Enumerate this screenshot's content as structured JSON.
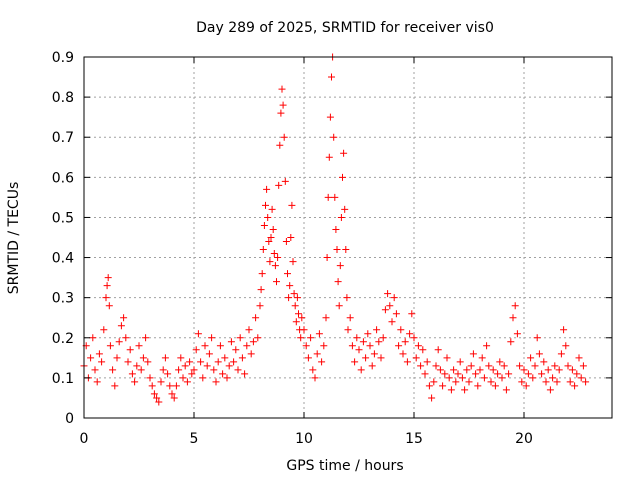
{
  "chart_data": {
    "type": "scatter",
    "title": "Day 289 of 2025, SRMTID for receiver vis0",
    "xlabel": "GPS time / hours",
    "ylabel": "SRMTID / TECUs",
    "xlim": [
      0,
      24
    ],
    "ylim": [
      0,
      0.9
    ],
    "x_ticks": [
      0,
      5,
      10,
      15,
      20
    ],
    "y_ticks": [
      0,
      0.1,
      0.2,
      0.3,
      0.4,
      0.5,
      0.6,
      0.7,
      0.8,
      0.9
    ],
    "x_tick_labels": [
      "0",
      "5",
      "10",
      "15",
      "20"
    ],
    "y_tick_labels": [
      "0",
      "0.1",
      "0.2",
      "0.3",
      "0.4",
      "0.5",
      "0.6",
      "0.7",
      "0.8",
      "0.9"
    ],
    "grid": true,
    "marker": "+",
    "series": [
      {
        "name": "vis0",
        "color": "#ff0000",
        "points": [
          [
            0.0,
            0.13
          ],
          [
            0.1,
            0.18
          ],
          [
            0.2,
            0.1
          ],
          [
            0.3,
            0.15
          ],
          [
            0.4,
            0.2
          ],
          [
            0.5,
            0.12
          ],
          [
            0.6,
            0.09
          ],
          [
            0.7,
            0.16
          ],
          [
            0.8,
            0.14
          ],
          [
            0.9,
            0.22
          ],
          [
            1.0,
            0.3
          ],
          [
            1.05,
            0.33
          ],
          [
            1.1,
            0.35
          ],
          [
            1.15,
            0.28
          ],
          [
            1.2,
            0.18
          ],
          [
            1.3,
            0.12
          ],
          [
            1.4,
            0.08
          ],
          [
            1.5,
            0.15
          ],
          [
            1.6,
            0.19
          ],
          [
            1.7,
            0.23
          ],
          [
            1.8,
            0.25
          ],
          [
            1.9,
            0.2
          ],
          [
            2.0,
            0.14
          ],
          [
            2.1,
            0.17
          ],
          [
            2.2,
            0.11
          ],
          [
            2.3,
            0.09
          ],
          [
            2.4,
            0.13
          ],
          [
            2.5,
            0.18
          ],
          [
            2.6,
            0.12
          ],
          [
            2.7,
            0.15
          ],
          [
            2.8,
            0.2
          ],
          [
            2.9,
            0.14
          ],
          [
            3.0,
            0.1
          ],
          [
            3.1,
            0.08
          ],
          [
            3.2,
            0.06
          ],
          [
            3.3,
            0.05
          ],
          [
            3.4,
            0.04
          ],
          [
            3.5,
            0.09
          ],
          [
            3.6,
            0.12
          ],
          [
            3.7,
            0.15
          ],
          [
            3.8,
            0.11
          ],
          [
            3.9,
            0.08
          ],
          [
            4.0,
            0.06
          ],
          [
            4.1,
            0.05
          ],
          [
            4.2,
            0.08
          ],
          [
            4.3,
            0.12
          ],
          [
            4.4,
            0.15
          ],
          [
            4.5,
            0.1
          ],
          [
            4.6,
            0.13
          ],
          [
            4.7,
            0.09
          ],
          [
            4.8,
            0.14
          ],
          [
            4.9,
            0.11
          ],
          [
            5.0,
            0.12
          ],
          [
            5.1,
            0.17
          ],
          [
            5.2,
            0.21
          ],
          [
            5.3,
            0.14
          ],
          [
            5.4,
            0.1
          ],
          [
            5.5,
            0.18
          ],
          [
            5.6,
            0.13
          ],
          [
            5.7,
            0.16
          ],
          [
            5.8,
            0.2
          ],
          [
            5.9,
            0.12
          ],
          [
            6.0,
            0.09
          ],
          [
            6.1,
            0.14
          ],
          [
            6.2,
            0.18
          ],
          [
            6.3,
            0.11
          ],
          [
            6.4,
            0.15
          ],
          [
            6.5,
            0.1
          ],
          [
            6.6,
            0.13
          ],
          [
            6.7,
            0.19
          ],
          [
            6.8,
            0.14
          ],
          [
            6.9,
            0.17
          ],
          [
            7.0,
            0.12
          ],
          [
            7.1,
            0.2
          ],
          [
            7.2,
            0.15
          ],
          [
            7.3,
            0.11
          ],
          [
            7.4,
            0.18
          ],
          [
            7.5,
            0.22
          ],
          [
            7.6,
            0.16
          ],
          [
            7.7,
            0.19
          ],
          [
            7.8,
            0.25
          ],
          [
            7.9,
            0.2
          ],
          [
            8.0,
            0.28
          ],
          [
            8.05,
            0.32
          ],
          [
            8.1,
            0.36
          ],
          [
            8.15,
            0.42
          ],
          [
            8.2,
            0.48
          ],
          [
            8.25,
            0.53
          ],
          [
            8.3,
            0.57
          ],
          [
            8.35,
            0.5
          ],
          [
            8.4,
            0.44
          ],
          [
            8.45,
            0.39
          ],
          [
            8.5,
            0.45
          ],
          [
            8.55,
            0.52
          ],
          [
            8.6,
            0.47
          ],
          [
            8.65,
            0.41
          ],
          [
            8.7,
            0.38
          ],
          [
            8.75,
            0.34
          ],
          [
            8.8,
            0.4
          ],
          [
            8.85,
            0.58
          ],
          [
            8.9,
            0.68
          ],
          [
            8.95,
            0.76
          ],
          [
            9.0,
            0.82
          ],
          [
            9.05,
            0.78
          ],
          [
            9.1,
            0.7
          ],
          [
            9.15,
            0.59
          ],
          [
            9.2,
            0.44
          ],
          [
            9.25,
            0.36
          ],
          [
            9.3,
            0.3
          ],
          [
            9.35,
            0.33
          ],
          [
            9.4,
            0.45
          ],
          [
            9.45,
            0.53
          ],
          [
            9.5,
            0.39
          ],
          [
            9.55,
            0.31
          ],
          [
            9.6,
            0.28
          ],
          [
            9.65,
            0.24
          ],
          [
            9.7,
            0.3
          ],
          [
            9.75,
            0.26
          ],
          [
            9.8,
            0.22
          ],
          [
            9.85,
            0.2
          ],
          [
            9.9,
            0.25
          ],
          [
            10.0,
            0.22
          ],
          [
            10.1,
            0.18
          ],
          [
            10.2,
            0.15
          ],
          [
            10.3,
            0.2
          ],
          [
            10.4,
            0.12
          ],
          [
            10.5,
            0.1
          ],
          [
            10.6,
            0.16
          ],
          [
            10.7,
            0.21
          ],
          [
            10.8,
            0.14
          ],
          [
            10.9,
            0.18
          ],
          [
            11.0,
            0.25
          ],
          [
            11.05,
            0.4
          ],
          [
            11.1,
            0.55
          ],
          [
            11.15,
            0.65
          ],
          [
            11.2,
            0.75
          ],
          [
            11.25,
            0.85
          ],
          [
            11.3,
            0.9
          ],
          [
            11.35,
            0.7
          ],
          [
            11.4,
            0.55
          ],
          [
            11.45,
            0.47
          ],
          [
            11.5,
            0.42
          ],
          [
            11.55,
            0.34
          ],
          [
            11.6,
            0.28
          ],
          [
            11.65,
            0.38
          ],
          [
            11.7,
            0.5
          ],
          [
            11.75,
            0.6
          ],
          [
            11.8,
            0.66
          ],
          [
            11.85,
            0.52
          ],
          [
            11.9,
            0.42
          ],
          [
            11.95,
            0.3
          ],
          [
            12.0,
            0.22
          ],
          [
            12.1,
            0.25
          ],
          [
            12.2,
            0.18
          ],
          [
            12.3,
            0.14
          ],
          [
            12.4,
            0.2
          ],
          [
            12.5,
            0.17
          ],
          [
            12.6,
            0.12
          ],
          [
            12.7,
            0.19
          ],
          [
            12.8,
            0.15
          ],
          [
            12.9,
            0.21
          ],
          [
            13.0,
            0.18
          ],
          [
            13.1,
            0.13
          ],
          [
            13.2,
            0.16
          ],
          [
            13.3,
            0.22
          ],
          [
            13.4,
            0.19
          ],
          [
            13.5,
            0.15
          ],
          [
            13.6,
            0.2
          ],
          [
            13.7,
            0.27
          ],
          [
            13.8,
            0.31
          ],
          [
            13.9,
            0.28
          ],
          [
            14.0,
            0.24
          ],
          [
            14.1,
            0.3
          ],
          [
            14.2,
            0.26
          ],
          [
            14.3,
            0.18
          ],
          [
            14.4,
            0.22
          ],
          [
            14.5,
            0.16
          ],
          [
            14.6,
            0.19
          ],
          [
            14.7,
            0.14
          ],
          [
            14.8,
            0.21
          ],
          [
            14.9,
            0.26
          ],
          [
            15.0,
            0.2
          ],
          [
            15.1,
            0.15
          ],
          [
            15.2,
            0.18
          ],
          [
            15.3,
            0.13
          ],
          [
            15.4,
            0.17
          ],
          [
            15.5,
            0.11
          ],
          [
            15.6,
            0.14
          ],
          [
            15.7,
            0.08
          ],
          [
            15.8,
            0.05
          ],
          [
            15.9,
            0.09
          ],
          [
            16.0,
            0.13
          ],
          [
            16.1,
            0.17
          ],
          [
            16.2,
            0.12
          ],
          [
            16.3,
            0.08
          ],
          [
            16.4,
            0.11
          ],
          [
            16.5,
            0.15
          ],
          [
            16.6,
            0.1
          ],
          [
            16.7,
            0.07
          ],
          [
            16.8,
            0.12
          ],
          [
            16.9,
            0.09
          ],
          [
            17.0,
            0.11
          ],
          [
            17.1,
            0.14
          ],
          [
            17.2,
            0.1
          ],
          [
            17.3,
            0.07
          ],
          [
            17.4,
            0.12
          ],
          [
            17.5,
            0.09
          ],
          [
            17.6,
            0.13
          ],
          [
            17.7,
            0.16
          ],
          [
            17.8,
            0.11
          ],
          [
            17.9,
            0.08
          ],
          [
            18.0,
            0.12
          ],
          [
            18.1,
            0.15
          ],
          [
            18.2,
            0.1
          ],
          [
            18.3,
            0.18
          ],
          [
            18.4,
            0.13
          ],
          [
            18.5,
            0.09
          ],
          [
            18.6,
            0.12
          ],
          [
            18.7,
            0.08
          ],
          [
            18.8,
            0.11
          ],
          [
            18.9,
            0.14
          ],
          [
            19.0,
            0.1
          ],
          [
            19.1,
            0.13
          ],
          [
            19.2,
            0.07
          ],
          [
            19.3,
            0.11
          ],
          [
            19.4,
            0.19
          ],
          [
            19.5,
            0.25
          ],
          [
            19.6,
            0.28
          ],
          [
            19.7,
            0.21
          ],
          [
            19.8,
            0.13
          ],
          [
            19.9,
            0.09
          ],
          [
            20.0,
            0.12
          ],
          [
            20.1,
            0.08
          ],
          [
            20.2,
            0.11
          ],
          [
            20.3,
            0.15
          ],
          [
            20.4,
            0.1
          ],
          [
            20.5,
            0.13
          ],
          [
            20.6,
            0.2
          ],
          [
            20.7,
            0.16
          ],
          [
            20.8,
            0.11
          ],
          [
            20.9,
            0.14
          ],
          [
            21.0,
            0.09
          ],
          [
            21.1,
            0.12
          ],
          [
            21.2,
            0.07
          ],
          [
            21.3,
            0.1
          ],
          [
            21.4,
            0.13
          ],
          [
            21.5,
            0.09
          ],
          [
            21.6,
            0.12
          ],
          [
            21.7,
            0.16
          ],
          [
            21.8,
            0.22
          ],
          [
            21.9,
            0.18
          ],
          [
            22.0,
            0.13
          ],
          [
            22.1,
            0.09
          ],
          [
            22.2,
            0.12
          ],
          [
            22.3,
            0.08
          ],
          [
            22.4,
            0.11
          ],
          [
            22.5,
            0.15
          ],
          [
            22.6,
            0.1
          ],
          [
            22.7,
            0.13
          ],
          [
            22.8,
            0.09
          ]
        ]
      }
    ]
  }
}
